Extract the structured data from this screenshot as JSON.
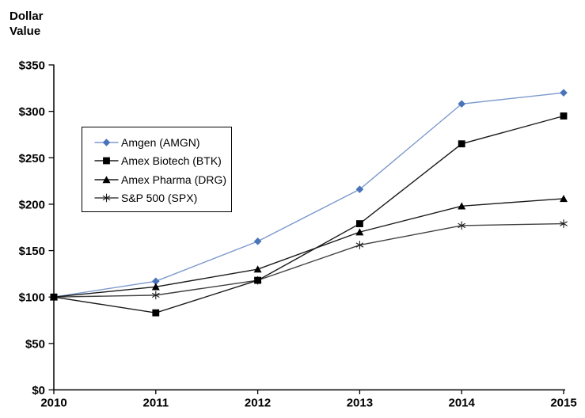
{
  "chart_data": {
    "type": "line",
    "ylabel": "Dollar Value",
    "ylabel_lines": [
      "Dollar",
      "Value"
    ],
    "x": [
      2010,
      2011,
      2012,
      2013,
      2014,
      2015
    ],
    "x_tick_labels": [
      "2010",
      "2011",
      "2012",
      "2013",
      "2014",
      "2015"
    ],
    "y_tick_labels": [
      "$0",
      "$50",
      "$100",
      "$150",
      "$200",
      "$250",
      "$300",
      "$350"
    ],
    "y_tick_step": 50,
    "ylim": [
      0,
      350
    ],
    "grid": false,
    "legend_position": "upper-left-inside",
    "axis_color": "#000000",
    "background_color": "#ffffff",
    "series": [
      {
        "id": "amgn",
        "name": "Amgen (AMGN)",
        "marker": "diamond",
        "line_color": "#7b99cc",
        "marker_color": "#4a74ba",
        "values": [
          100,
          117,
          160,
          216,
          308,
          320
        ]
      },
      {
        "id": "btk",
        "name": "Amex Biotech (BTK)",
        "marker": "square",
        "line_color": "#1a1a1a",
        "marker_color": "#000000",
        "values": [
          100,
          83,
          118,
          179,
          265,
          295
        ]
      },
      {
        "id": "drg",
        "name": "Amex Pharma (DRG)",
        "marker": "triangle",
        "line_color": "#1a1a1a",
        "marker_color": "#000000",
        "values": [
          100,
          111,
          130,
          170,
          198,
          206
        ]
      },
      {
        "id": "spx",
        "name": "S&P 500 (SPX)",
        "marker": "asterisk",
        "line_color": "#404040",
        "marker_color": "#1a1a1a",
        "values": [
          100,
          102,
          118,
          156,
          177,
          179
        ]
      }
    ]
  }
}
